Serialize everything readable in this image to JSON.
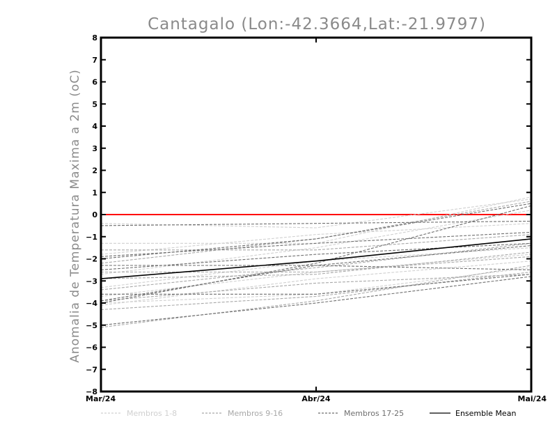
{
  "chart_data": {
    "type": "line",
    "title": "Cantagalo (Lon:-42.3664,Lat:-21.9797)",
    "xlabel": "",
    "ylabel": "Anomalia de Temperatura Maxima a 2m (oC)",
    "categories": [
      "Mar/24",
      "Abr/24",
      "Mai/24"
    ],
    "ylim": [
      -8,
      8
    ],
    "yticks": [
      "8",
      "7",
      "6",
      "5",
      "4",
      "3",
      "2",
      "1",
      "0",
      "−1",
      "−2",
      "−3",
      "−4",
      "−5",
      "−6",
      "−7",
      "−8"
    ],
    "ytick_values": [
      8,
      7,
      6,
      5,
      4,
      3,
      2,
      1,
      0,
      -1,
      -2,
      -3,
      -4,
      -5,
      -6,
      -7,
      -8
    ],
    "grid": false,
    "legend_position": "bottom",
    "reference_line": {
      "value": 0,
      "color": "#ff0000"
    },
    "groups": [
      {
        "label": "Membros 1-8",
        "color": "#d0d0d0"
      },
      {
        "label": "Membros 9-16",
        "color": "#a8a8a8"
      },
      {
        "label": "Membros 17-25",
        "color": "#6e6e6e"
      },
      {
        "label": "Ensemble Mean",
        "color": "#000000"
      }
    ],
    "series": [
      {
        "group": 0,
        "values": [
          -1.3,
          -1.3,
          0.8
        ]
      },
      {
        "group": 0,
        "values": [
          -3.3,
          -2.1,
          -1.5
        ]
      },
      {
        "group": 0,
        "values": [
          -4.1,
          -2.9,
          -2.1
        ]
      },
      {
        "group": 0,
        "values": [
          -2.7,
          -1.5,
          0.2
        ]
      },
      {
        "group": 0,
        "values": [
          -0.4,
          -0.6,
          0.7
        ]
      },
      {
        "group": 0,
        "values": [
          -3.7,
          -2.6,
          -1.8
        ]
      },
      {
        "group": 0,
        "values": [
          -4.0,
          -3.6,
          -2.4
        ]
      },
      {
        "group": 0,
        "values": [
          -1.8,
          -0.9,
          -0.4
        ]
      },
      {
        "group": 1,
        "values": [
          -3.4,
          -2.4,
          -1.3
        ]
      },
      {
        "group": 1,
        "values": [
          -1.6,
          -1.6,
          -0.9
        ]
      },
      {
        "group": 1,
        "values": [
          -2.6,
          -2.6,
          -1.9
        ]
      },
      {
        "group": 1,
        "values": [
          -4.3,
          -3.7,
          -2.6
        ]
      },
      {
        "group": 1,
        "values": [
          -5.1,
          -3.9,
          -2.3
        ]
      },
      {
        "group": 1,
        "values": [
          -2.2,
          -1.1,
          0.6
        ]
      },
      {
        "group": 1,
        "values": [
          -3.9,
          -3.1,
          -2.7
        ]
      },
      {
        "group": 1,
        "values": [
          -2.9,
          -2.7,
          -1.7
        ]
      },
      {
        "group": 2,
        "values": [
          -2.0,
          -1.1,
          0.5
        ]
      },
      {
        "group": 2,
        "values": [
          -3.9,
          -2.3,
          -1.4
        ]
      },
      {
        "group": 2,
        "values": [
          -2.3,
          -2.3,
          -2.5
        ]
      },
      {
        "group": 2,
        "values": [
          -5.0,
          -4.0,
          -2.8
        ]
      },
      {
        "group": 2,
        "values": [
          -1.9,
          -1.3,
          -0.8
        ]
      },
      {
        "group": 2,
        "values": [
          -4.0,
          -2.2,
          0.4
        ]
      },
      {
        "group": 2,
        "values": [
          -3.6,
          -3.6,
          -2.7
        ]
      },
      {
        "group": 2,
        "values": [
          -0.5,
          -0.4,
          -0.3
        ]
      },
      {
        "group": 2,
        "values": [
          -2.5,
          -1.8,
          -1.3
        ]
      },
      {
        "group": 3,
        "values": [
          -2.9,
          -2.1,
          -1.1
        ]
      }
    ]
  }
}
